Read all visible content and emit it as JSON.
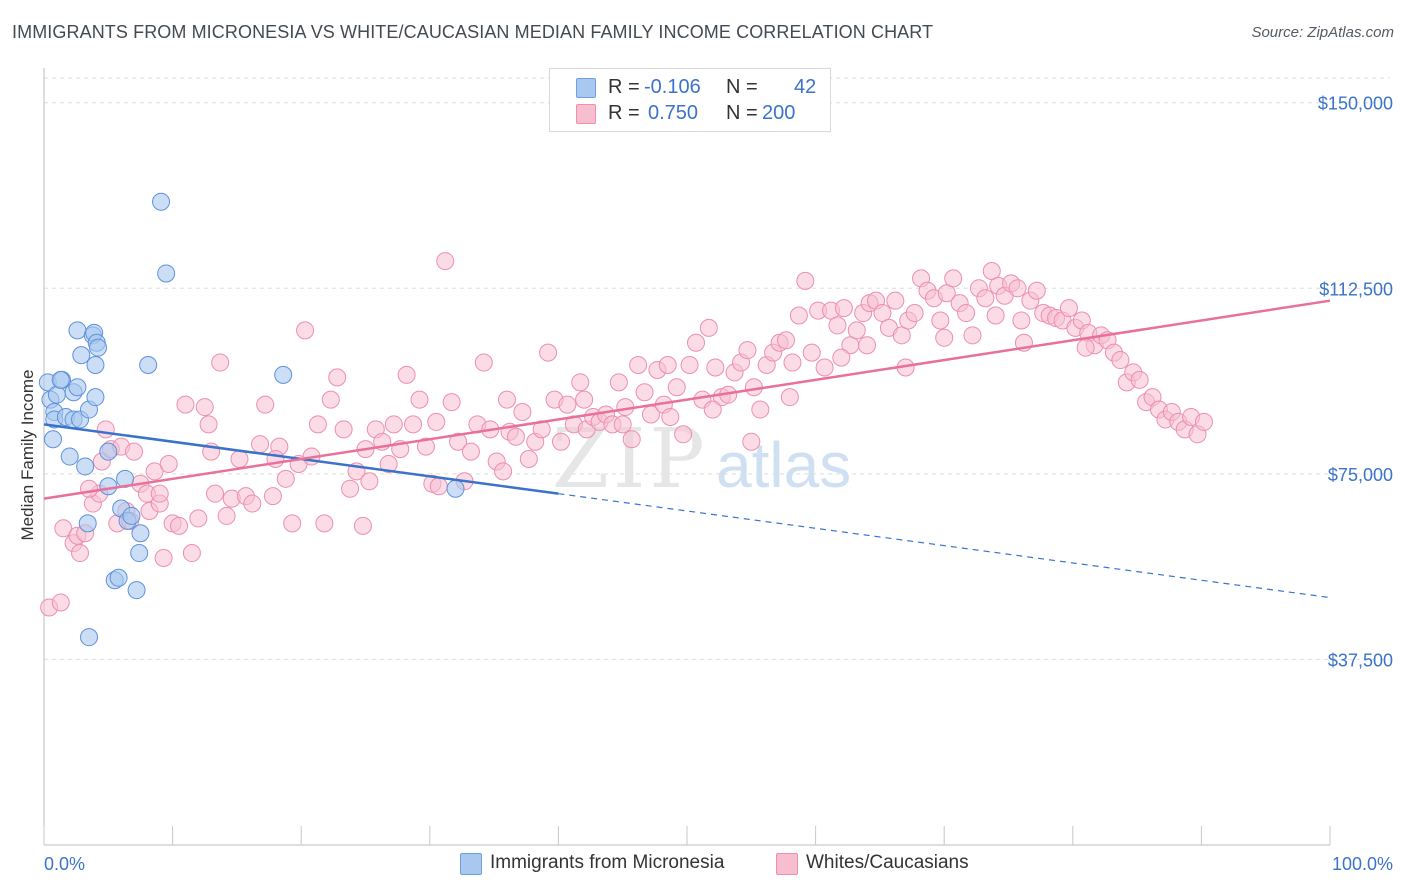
{
  "title": "IMMIGRANTS FROM MICRONESIA VS WHITE/CAUCASIAN MEDIAN FAMILY INCOME CORRELATION CHART",
  "source": "Source: ZipAtlas.com",
  "watermark": {
    "zip": "ZIP",
    "atlas": "atlas"
  },
  "legend": {
    "rows": [
      {
        "r_label": "R =",
        "r_value": "-0.106",
        "n_label": "N =",
        "n_value": "42",
        "color": "#a9c8f0",
        "border": "#6fa0e0"
      },
      {
        "r_label": "R =",
        "r_value": "0.750",
        "n_label": "N =",
        "n_value": "200",
        "color": "#f7bed0",
        "border": "#ef8fae"
      }
    ]
  },
  "bottom_legend": [
    "Immigrants from Micronesia",
    "Whites/Caucasians"
  ],
  "colors": {
    "blue_fill": "#a9c8f0",
    "blue_stroke": "#5e92da",
    "blue_line": "#3a73c9",
    "pink_fill": "#f7c0d2",
    "pink_stroke": "#ec8fae",
    "pink_line": "#e8709a",
    "axis_label": "#3a73c9",
    "grid": "#dedede"
  },
  "chart_data": {
    "type": "scatter",
    "title": "IMMIGRANTS FROM MICRONESIA VS WHITE/CAUCASIAN MEDIAN FAMILY INCOME CORRELATION CHART",
    "xlabel": "",
    "ylabel": "Median Family Income",
    "xlim": [
      0,
      100
    ],
    "ylim": [
      0,
      155000
    ],
    "x_tick_labels": [
      "0.0%",
      "100.0%"
    ],
    "y_ticks": [
      37500,
      75000,
      112500,
      150000
    ],
    "y_tick_labels": [
      "$37,500",
      "$75,000",
      "$112,500",
      "$150,000"
    ],
    "grid": true,
    "legend_position": "top-center",
    "series": [
      {
        "name": "Immigrants from Micronesia",
        "r": -0.106,
        "n": 42,
        "trend": {
          "x0": 0,
          "y0": 85000,
          "x1": 40,
          "y1": 71000,
          "dash_x1": 100,
          "dash_y1": 50000
        },
        "points": [
          [
            0.3,
            93500
          ],
          [
            0.5,
            90000
          ],
          [
            0.8,
            87500
          ],
          [
            1.0,
            91000
          ],
          [
            0.7,
            82000
          ],
          [
            0.8,
            86000
          ],
          [
            1.4,
            94000
          ],
          [
            1.7,
            86500
          ],
          [
            2.0,
            78500
          ],
          [
            2.3,
            91500
          ],
          [
            2.3,
            86000
          ],
          [
            2.6,
            92500
          ],
          [
            2.6,
            104000
          ],
          [
            2.8,
            86000
          ],
          [
            2.9,
            99000
          ],
          [
            3.2,
            76500
          ],
          [
            3.4,
            65000
          ],
          [
            3.5,
            88000
          ],
          [
            3.5,
            42000
          ],
          [
            3.8,
            103000
          ],
          [
            3.9,
            103500
          ],
          [
            4.0,
            90500
          ],
          [
            4.0,
            97000
          ],
          [
            4.1,
            101500
          ],
          [
            4.2,
            100500
          ],
          [
            5.0,
            72500
          ],
          [
            5.0,
            79500
          ],
          [
            5.5,
            53500
          ],
          [
            5.8,
            54000
          ],
          [
            6.0,
            68000
          ],
          [
            6.5,
            65500
          ],
          [
            6.8,
            66500
          ],
          [
            7.2,
            51500
          ],
          [
            7.4,
            59000
          ],
          [
            7.5,
            63000
          ],
          [
            8.1,
            97000
          ],
          [
            9.1,
            130000
          ],
          [
            9.5,
            115500
          ],
          [
            18.6,
            95000
          ],
          [
            32.0,
            72000
          ],
          [
            6.3,
            74000
          ],
          [
            1.3,
            94000
          ]
        ]
      },
      {
        "name": "Whites/Caucasians",
        "r": 0.75,
        "n": 200,
        "trend": {
          "x0": 0,
          "y0": 70000,
          "x1": 100,
          "y1": 110000
        },
        "points": [
          [
            0.4,
            48000
          ],
          [
            1.3,
            49000
          ],
          [
            1.5,
            64000
          ],
          [
            2.3,
            61000
          ],
          [
            2.6,
            62500
          ],
          [
            2.8,
            59000
          ],
          [
            3.2,
            63000
          ],
          [
            3.8,
            69000
          ],
          [
            4.3,
            71000
          ],
          [
            4.5,
            77500
          ],
          [
            4.8,
            84000
          ],
          [
            5.2,
            80000
          ],
          [
            5.7,
            65000
          ],
          [
            6.0,
            80500
          ],
          [
            6.4,
            67500
          ],
          [
            6.7,
            65500
          ],
          [
            7.0,
            79500
          ],
          [
            7.5,
            73000
          ],
          [
            8.0,
            71000
          ],
          [
            8.2,
            67500
          ],
          [
            8.6,
            75500
          ],
          [
            9.0,
            69000
          ],
          [
            9.3,
            58000
          ],
          [
            9.7,
            77000
          ],
          [
            10.0,
            65000
          ],
          [
            10.5,
            64500
          ],
          [
            11.0,
            89000
          ],
          [
            11.5,
            59000
          ],
          [
            12.0,
            66000
          ],
          [
            12.5,
            88500
          ],
          [
            13.0,
            79500
          ],
          [
            13.3,
            71000
          ],
          [
            13.7,
            97500
          ],
          [
            14.2,
            66500
          ],
          [
            14.6,
            70000
          ],
          [
            15.2,
            78000
          ],
          [
            15.7,
            70500
          ],
          [
            16.2,
            69000
          ],
          [
            16.8,
            81000
          ],
          [
            17.2,
            89000
          ],
          [
            17.8,
            70500
          ],
          [
            18.3,
            80500
          ],
          [
            18.8,
            74000
          ],
          [
            19.3,
            65000
          ],
          [
            19.8,
            77000
          ],
          [
            20.3,
            104000
          ],
          [
            20.8,
            78500
          ],
          [
            21.3,
            85000
          ],
          [
            21.8,
            65000
          ],
          [
            22.3,
            90000
          ],
          [
            22.8,
            94500
          ],
          [
            23.3,
            84000
          ],
          [
            23.8,
            72000
          ],
          [
            24.3,
            75500
          ],
          [
            24.8,
            64500
          ],
          [
            25.3,
            73500
          ],
          [
            25.8,
            84000
          ],
          [
            26.3,
            81500
          ],
          [
            26.8,
            77000
          ],
          [
            27.2,
            85000
          ],
          [
            27.7,
            80000
          ],
          [
            28.2,
            95000
          ],
          [
            28.7,
            85000
          ],
          [
            29.2,
            90000
          ],
          [
            29.7,
            80500
          ],
          [
            30.2,
            73000
          ],
          [
            30.7,
            72500
          ],
          [
            31.2,
            118000
          ],
          [
            31.7,
            89500
          ],
          [
            32.2,
            81500
          ],
          [
            32.7,
            73500
          ],
          [
            33.2,
            79500
          ],
          [
            33.7,
            85000
          ],
          [
            34.2,
            97500
          ],
          [
            34.7,
            84000
          ],
          [
            35.2,
            77500
          ],
          [
            35.7,
            75500
          ],
          [
            36.2,
            83500
          ],
          [
            36.7,
            82500
          ],
          [
            37.2,
            87500
          ],
          [
            37.7,
            78000
          ],
          [
            38.2,
            81500
          ],
          [
            38.7,
            84000
          ],
          [
            39.2,
            99500
          ],
          [
            39.7,
            90000
          ],
          [
            40.2,
            81500
          ],
          [
            40.7,
            89000
          ],
          [
            41.2,
            85000
          ],
          [
            41.7,
            93500
          ],
          [
            42.2,
            84000
          ],
          [
            42.7,
            86500
          ],
          [
            43.2,
            85500
          ],
          [
            43.7,
            87000
          ],
          [
            44.2,
            85000
          ],
          [
            44.7,
            93500
          ],
          [
            45.2,
            88500
          ],
          [
            45.7,
            82000
          ],
          [
            46.2,
            97000
          ],
          [
            46.7,
            91500
          ],
          [
            47.2,
            87000
          ],
          [
            47.7,
            96000
          ],
          [
            48.2,
            89000
          ],
          [
            48.7,
            86500
          ],
          [
            49.2,
            92500
          ],
          [
            49.7,
            83000
          ],
          [
            50.2,
            97000
          ],
          [
            50.7,
            101500
          ],
          [
            51.2,
            90000
          ],
          [
            51.7,
            104500
          ],
          [
            52.2,
            96500
          ],
          [
            52.7,
            90500
          ],
          [
            53.2,
            91000
          ],
          [
            53.7,
            95500
          ],
          [
            54.2,
            97500
          ],
          [
            54.7,
            100000
          ],
          [
            55.2,
            92500
          ],
          [
            55.7,
            88000
          ],
          [
            56.2,
            97000
          ],
          [
            56.7,
            99500
          ],
          [
            57.2,
            101500
          ],
          [
            57.7,
            102000
          ],
          [
            58.2,
            97500
          ],
          [
            58.7,
            107000
          ],
          [
            59.2,
            114000
          ],
          [
            59.7,
            99500
          ],
          [
            60.2,
            108000
          ],
          [
            60.7,
            96500
          ],
          [
            61.2,
            108000
          ],
          [
            61.7,
            105000
          ],
          [
            62.2,
            108500
          ],
          [
            62.7,
            101000
          ],
          [
            63.2,
            104000
          ],
          [
            63.7,
            107500
          ],
          [
            64.2,
            109500
          ],
          [
            64.7,
            110000
          ],
          [
            65.2,
            107500
          ],
          [
            65.7,
            104500
          ],
          [
            66.2,
            110000
          ],
          [
            66.7,
            103000
          ],
          [
            67.2,
            106000
          ],
          [
            67.7,
            107500
          ],
          [
            68.2,
            114500
          ],
          [
            68.7,
            112000
          ],
          [
            69.2,
            110500
          ],
          [
            69.7,
            106000
          ],
          [
            70.2,
            111500
          ],
          [
            70.7,
            114500
          ],
          [
            71.2,
            109500
          ],
          [
            71.7,
            107500
          ],
          [
            72.2,
            103000
          ],
          [
            72.7,
            112500
          ],
          [
            73.2,
            110500
          ],
          [
            73.7,
            116000
          ],
          [
            74.2,
            113000
          ],
          [
            74.7,
            111000
          ],
          [
            75.2,
            113500
          ],
          [
            75.7,
            112500
          ],
          [
            76.2,
            101500
          ],
          [
            76.7,
            110000
          ],
          [
            77.2,
            112000
          ],
          [
            77.7,
            107500
          ],
          [
            78.2,
            107000
          ],
          [
            78.7,
            106500
          ],
          [
            79.2,
            106000
          ],
          [
            79.7,
            108500
          ],
          [
            80.2,
            104500
          ],
          [
            80.7,
            106000
          ],
          [
            81.2,
            103500
          ],
          [
            81.7,
            101000
          ],
          [
            82.2,
            103000
          ],
          [
            82.7,
            102000
          ],
          [
            83.2,
            99500
          ],
          [
            83.7,
            98000
          ],
          [
            84.2,
            93500
          ],
          [
            84.7,
            95500
          ],
          [
            85.2,
            94000
          ],
          [
            85.7,
            89500
          ],
          [
            86.2,
            90500
          ],
          [
            86.7,
            88000
          ],
          [
            87.2,
            86000
          ],
          [
            87.7,
            87500
          ],
          [
            88.2,
            85500
          ],
          [
            88.7,
            84000
          ],
          [
            89.2,
            86500
          ],
          [
            89.7,
            83000
          ],
          [
            90.2,
            85500
          ],
          [
            30.5,
            85500
          ],
          [
            12.8,
            85000
          ],
          [
            48.5,
            97000
          ],
          [
            55.0,
            81500
          ],
          [
            25.0,
            80000
          ],
          [
            36.0,
            90000
          ],
          [
            62.0,
            98500
          ],
          [
            70.0,
            102500
          ],
          [
            45.0,
            85000
          ],
          [
            58.0,
            90500
          ],
          [
            67.0,
            96500
          ],
          [
            74.0,
            107000
          ],
          [
            42.0,
            90000
          ],
          [
            52.0,
            88000
          ],
          [
            64.0,
            101000
          ],
          [
            18.0,
            78000
          ],
          [
            9.0,
            71000
          ],
          [
            3.5,
            72000
          ],
          [
            76.0,
            106000
          ],
          [
            81.0,
            100500
          ]
        ]
      }
    ]
  }
}
